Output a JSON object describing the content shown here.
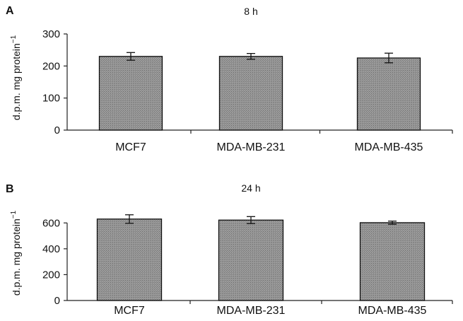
{
  "chart_data": [
    {
      "type": "bar",
      "panel_label": "A",
      "title": "8 h",
      "ylabel": "d.p.m. mg protein",
      "ylabel_sup": "−1",
      "categories": [
        "MCF7",
        "MDA-MB-231",
        "MDA-MB-435"
      ],
      "values": [
        230,
        230,
        225
      ],
      "errors": [
        12,
        9,
        15
      ],
      "ylim": [
        0,
        300
      ],
      "yticks": [
        0,
        100,
        200,
        300
      ],
      "grid": false,
      "bar_color": "#8e8e8e"
    },
    {
      "type": "bar",
      "panel_label": "B",
      "title": "24 h",
      "ylabel": "d.p.m. mg protein",
      "ylabel_sup": "−1",
      "categories": [
        "MCF7",
        "MDA-MB-231",
        "MDA-MB-435"
      ],
      "values": [
        630,
        622,
        602
      ],
      "errors": [
        33,
        27,
        12
      ],
      "ylim": [
        0,
        700
      ],
      "yticks": [
        0,
        200,
        400,
        600
      ],
      "grid": false,
      "bar_color": "#8e8e8e"
    }
  ]
}
